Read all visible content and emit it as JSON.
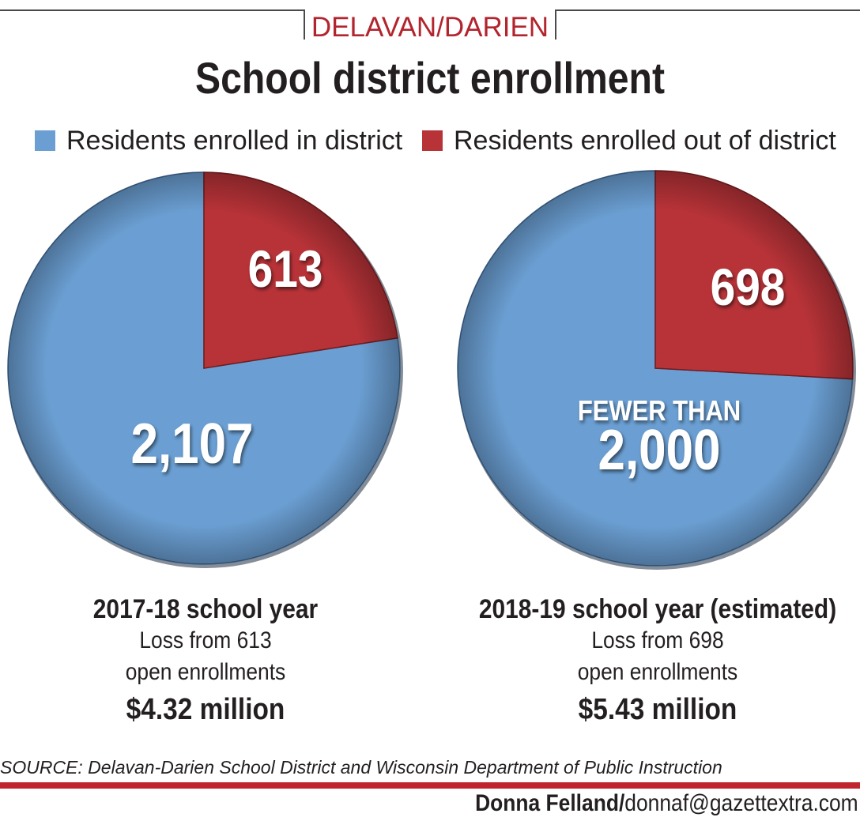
{
  "header": {
    "kicker": "DELAVAN/DARIEN",
    "title": "School district enrollment"
  },
  "legend": [
    {
      "label": "Residents enrolled in district",
      "color": "#6b9fd3"
    },
    {
      "label": "Residents enrolled out of district",
      "color": "#b83338"
    }
  ],
  "chart_data": [
    {
      "type": "pie",
      "title": "2017-18 school year",
      "slices": [
        {
          "name": "Residents enrolled in district",
          "value": 2107,
          "label": "2,107",
          "color": "#6b9fd3"
        },
        {
          "name": "Residents enrolled out of district",
          "value": 613,
          "label": "613",
          "color": "#b83338"
        }
      ]
    },
    {
      "type": "pie",
      "title": "2018-19 school year (estimated)",
      "slices": [
        {
          "name": "Residents enrolled in district",
          "value": 2000,
          "label": "2,000",
          "prefix": "FEWER THAN",
          "color": "#6b9fd3"
        },
        {
          "name": "Residents enrolled out of district",
          "value": 698,
          "label": "698",
          "color": "#b83338"
        }
      ]
    }
  ],
  "captions": [
    {
      "year": "2017-18 school year",
      "line1": "Loss from 613",
      "line2": "open enrollments",
      "money": "$4.32 million"
    },
    {
      "year": "2018-19 school year (estimated)",
      "line1": "Loss from 698",
      "line2": "open enrollments",
      "money": "$5.43 million"
    }
  ],
  "footer": {
    "source": "SOURCE: Delavan-Darien School District and Wisconsin Department of Public Instruction",
    "author": "Donna Felland/",
    "email": "donnaf@gazettextra.com"
  }
}
